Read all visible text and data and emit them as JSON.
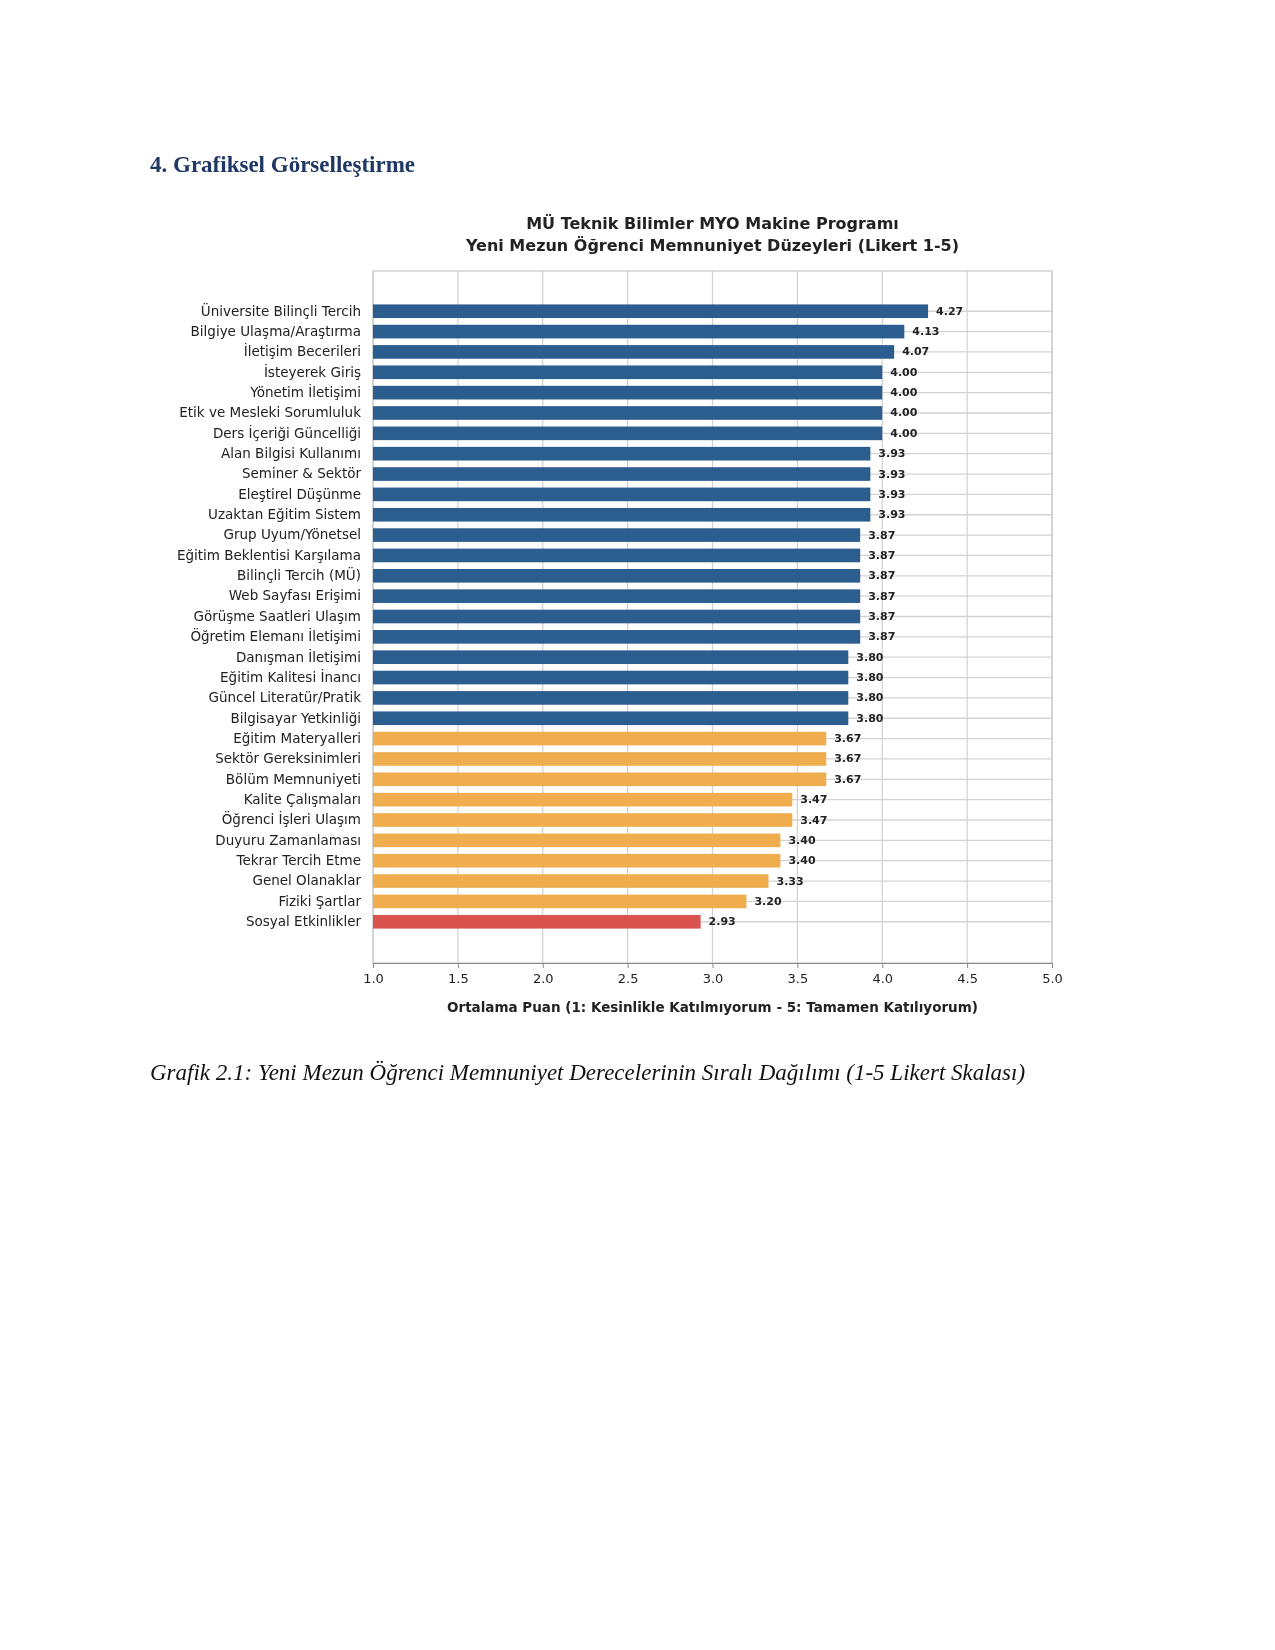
{
  "chart_data": {
    "type": "bar",
    "orientation": "horizontal",
    "title": "MÜ Teknik Bilimler MYO Makine Programı\nYeni Mezun Öğrenci Memnuniyet Düzeyleri (Likert 1-5)",
    "xlabel": "Ortalama Puan (1: Kesinlikle Katılmıyorum - 5: Tamamen Katılıyorum)",
    "annotations": [
      "4. Grafiksel Görselleştirme",
      "Grafik 2.1: Yeni Mezun Öğrenci Memnuniyet Derecelerinin Sıralı Dağılımı (1-5 Likert Skalası)"
    ],
    "categories": [
      "Üniversite Bilinçli Tercih",
      "Bilgiye Ulaşma/Araştırma",
      "İletişim Becerileri",
      "İsteyerek Giriş",
      "Yönetim İletişimi",
      "Etik ve Mesleki Sorumluluk",
      "Ders İçeriği Güncelliği",
      "Alan Bilgisi Kullanımı",
      "Seminer & Sektör",
      "Eleştirel Düşünme",
      "Uzaktan Eğitim Sistem",
      "Grup Uyum/Yönetsel",
      "Eğitim Beklentisi Karşılama",
      "Bilinçli Tercih (MÜ)",
      "Web Sayfası Erişimi",
      "Görüşme Saatleri Ulaşım",
      "Öğretim Elemanı İletişimi",
      "Danışman İletişimi",
      "Eğitim Kalitesi İnancı",
      "Güncel Literatür/Pratik",
      "Bilgisayar Yetkinliği",
      "Eğitim Materyalleri",
      "Sektör Gereksinimleri",
      "Bölüm Memnuniyeti",
      "Kalite Çalışmaları",
      "Öğrenci İşleri Ulaşım",
      "Duyuru Zamanlaması",
      "Tekrar Tercih Etme",
      "Genel Olanaklar",
      "Fiziki Şartlar",
      "Sosyal Etkinlikler"
    ],
    "values": [
      4.27,
      4.13,
      4.07,
      4.0,
      4.0,
      4.0,
      4.0,
      3.93,
      3.93,
      3.93,
      3.93,
      3.87,
      3.87,
      3.87,
      3.87,
      3.87,
      3.87,
      3.8,
      3.8,
      3.8,
      3.8,
      3.67,
      3.67,
      3.67,
      3.47,
      3.47,
      3.4,
      3.4,
      3.33,
      3.2,
      2.93
    ],
    "value_labels": [
      "4.27",
      "4.13",
      "4.07",
      "4.00",
      "4.00",
      "4.00",
      "4.00",
      "3.93",
      "3.93",
      "3.93",
      "3.93",
      "3.87",
      "3.87",
      "3.87",
      "3.87",
      "3.87",
      "3.87",
      "3.80",
      "3.80",
      "3.80",
      "3.80",
      "3.67",
      "3.67",
      "3.67",
      "3.47",
      "3.47",
      "3.40",
      "3.40",
      "3.33",
      "3.20",
      "2.93"
    ],
    "colors": [
      "#2c5d8f",
      "#2c5d8f",
      "#2c5d8f",
      "#2c5d8f",
      "#2c5d8f",
      "#2c5d8f",
      "#2c5d8f",
      "#2c5d8f",
      "#2c5d8f",
      "#2c5d8f",
      "#2c5d8f",
      "#2c5d8f",
      "#2c5d8f",
      "#2c5d8f",
      "#2c5d8f",
      "#2c5d8f",
      "#2c5d8f",
      "#2c5d8f",
      "#2c5d8f",
      "#2c5d8f",
      "#2c5d8f",
      "#f0ad4e",
      "#f0ad4e",
      "#f0ad4e",
      "#f0ad4e",
      "#f0ad4e",
      "#f0ad4e",
      "#f0ad4e",
      "#f0ad4e",
      "#f0ad4e",
      "#d9534f"
    ],
    "xlim": [
      1,
      5
    ],
    "xticks": [
      {
        "value": 1,
        "label": "1.0"
      },
      {
        "value": 1.5,
        "label": "1.5"
      },
      {
        "value": 2,
        "label": "2.0"
      },
      {
        "value": 2.5,
        "label": "2.5"
      },
      {
        "value": 3,
        "label": "3.0"
      },
      {
        "value": 3.5,
        "label": "3.5"
      },
      {
        "value": 4,
        "label": "4.0"
      },
      {
        "value": 4.5,
        "label": "4.5"
      },
      {
        "value": 5,
        "label": "5.0"
      }
    ],
    "grid": true
  }
}
